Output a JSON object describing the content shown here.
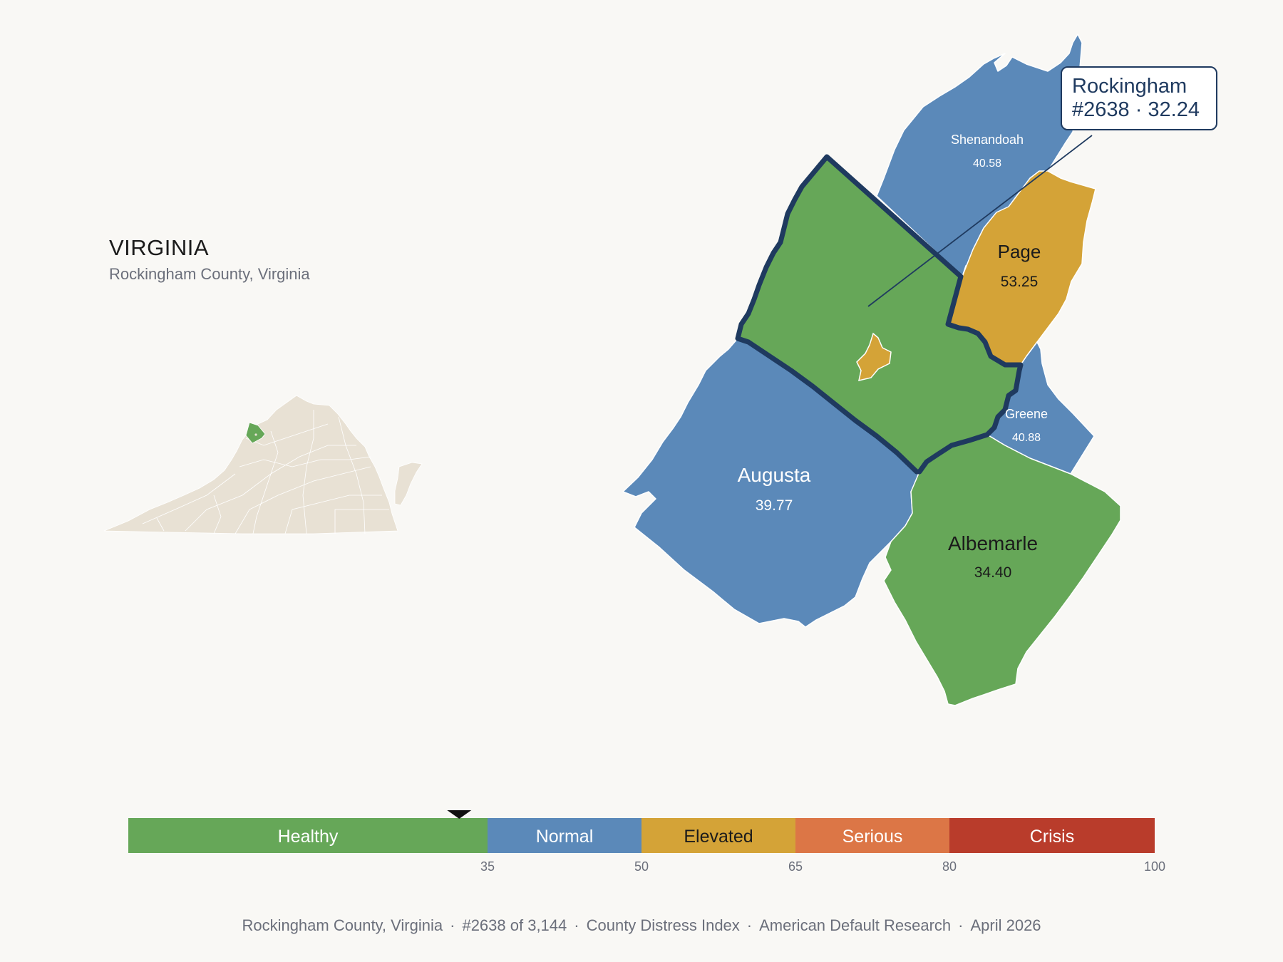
{
  "header": {
    "state_title": "VIRGINIA",
    "subtitle": "Rockingham County, Virginia"
  },
  "map": {
    "highlighted_county": "Rockingham",
    "counties": [
      {
        "name": "Rockingham",
        "value": "",
        "category": "Healthy",
        "color": "#66a758",
        "highlighted": true
      },
      {
        "name": "Shenandoah",
        "value": "40.58",
        "category": "Normal",
        "color": "#5b89b9"
      },
      {
        "name": "Page",
        "value": "53.25",
        "category": "Elevated",
        "color": "#d4a337"
      },
      {
        "name": "Greene",
        "value": "40.88",
        "category": "Normal",
        "color": "#5b89b9"
      },
      {
        "name": "Augusta",
        "value": "39.77",
        "category": "Normal",
        "color": "#5b89b9"
      },
      {
        "name": "Albemarle",
        "value": "34.40",
        "category": "Healthy",
        "color": "#66a758"
      }
    ],
    "enclave_color": "#d4a337",
    "highlight_border_color": "#1f3a5f"
  },
  "callout": {
    "line1": "Rockingham",
    "line2": "#2638 · 32.24"
  },
  "inset": {
    "fill_color": "#e8e1d4",
    "highlight_color": "#66a758"
  },
  "scale": {
    "min": 0,
    "max": 100,
    "marker_value": 32.24,
    "bands": [
      {
        "label": "Healthy",
        "from": 0,
        "to": 35,
        "color": "#66a758",
        "text_color": "#ffffff"
      },
      {
        "label": "Normal",
        "from": 35,
        "to": 50,
        "color": "#5b89b9",
        "text_color": "#ffffff"
      },
      {
        "label": "Elevated",
        "from": 50,
        "to": 65,
        "color": "#d4a337",
        "text_color": "#1b1b1b"
      },
      {
        "label": "Serious",
        "from": 65,
        "to": 80,
        "color": "#dc7646",
        "text_color": "#ffffff"
      },
      {
        "label": "Crisis",
        "from": 80,
        "to": 100,
        "color": "#b93c2b",
        "text_color": "#ffffff"
      }
    ],
    "ticks": [
      "35",
      "50",
      "65",
      "80",
      "100"
    ]
  },
  "footer": {
    "items": [
      "Rockingham County, Virginia",
      "#2638 of 3,144",
      "County Distress Index",
      "American Default Research",
      "April 2026"
    ]
  }
}
